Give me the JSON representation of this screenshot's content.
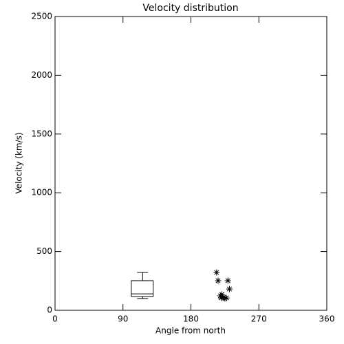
{
  "chart_data": {
    "type": "scatter",
    "title": "Velocity distribution",
    "x_label": "Angle from north",
    "y_label": "Velocity (km/s)",
    "xlim": [
      0,
      360
    ],
    "xticks": [
      0,
      90,
      180,
      270,
      360
    ],
    "ylim": [
      0,
      2500
    ],
    "yticks": [
      0,
      500,
      1000,
      1500,
      2000,
      2500
    ],
    "marker": "asterisk",
    "color": "#000000",
    "x": [
      214,
      216,
      229,
      231,
      219,
      221,
      223,
      225,
      220,
      227
    ],
    "values": [
      322,
      252,
      252,
      181,
      123,
      135,
      111,
      100,
      105,
      105
    ],
    "box": {
      "x": 116,
      "xlo": 101,
      "xhi": 130,
      "whislo": 100,
      "q1": 117,
      "med": 140,
      "q3": 252,
      "whishi": 322
    }
  }
}
